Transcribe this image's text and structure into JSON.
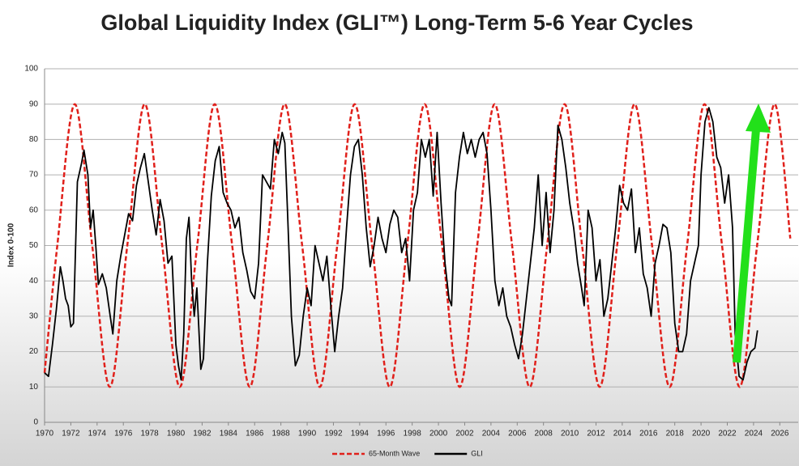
{
  "chart_data": {
    "type": "line",
    "title": "Global Liquidity Index (GLI™) Long-Term 5-6 Year Cycles",
    "y_label": "Index 0-100",
    "xlim": [
      1970,
      2027.4
    ],
    "ylim": [
      0,
      100
    ],
    "xticks": [
      1970,
      1972,
      1974,
      1976,
      1978,
      1980,
      1982,
      1984,
      1986,
      1988,
      1990,
      1992,
      1994,
      1996,
      1998,
      2000,
      2002,
      2004,
      2006,
      2008,
      2010,
      2012,
      2014,
      2016,
      2018,
      2020,
      2022,
      2024,
      2026
    ],
    "yticks": [
      0,
      10,
      20,
      30,
      40,
      50,
      60,
      70,
      80,
      90,
      100
    ],
    "grid": true,
    "legend": "bottom",
    "series": [
      {
        "name": "65-Month Wave",
        "color": "#e0201b",
        "dashed": true,
        "smooth": true,
        "x": [
          1970,
          1970.97,
          1972.3,
          1973.63,
          1974.97,
          1976.3,
          1977.63,
          1978.96,
          1980.3,
          1981.63,
          1982.96,
          1984.29,
          1985.63,
          1986.96,
          1988.29,
          1989.62,
          1990.96,
          1992.29,
          1993.62,
          1994.95,
          1996.29,
          1997.62,
          1998.95,
          2000.28,
          2001.62,
          2002.95,
          2004.28,
          2005.61,
          2006.95,
          2008.28,
          2009.61,
          2010.94,
          2012.28,
          2013.61,
          2014.94,
          2016.27,
          2017.61,
          2018.94,
          2020.27,
          2021.6,
          2022.94,
          2024.27,
          2025.6,
          2026.8
        ],
        "values": [
          14,
          50,
          90,
          50,
          10,
          50,
          90,
          50,
          10,
          50,
          90,
          50,
          10,
          50,
          90,
          50,
          10,
          50,
          90,
          50,
          10,
          50,
          90,
          50,
          10,
          50,
          90,
          50,
          10,
          50,
          90,
          50,
          10,
          50,
          90,
          50,
          10,
          50,
          90,
          50,
          10,
          50,
          90,
          52
        ]
      },
      {
        "name": "GLI",
        "color": "#000000",
        "dashed": false,
        "smooth": false,
        "x": [
          1970.0,
          1970.3,
          1970.6,
          1970.9,
          1971.2,
          1971.4,
          1971.6,
          1971.8,
          1972.0,
          1972.2,
          1972.5,
          1972.8,
          1973.0,
          1973.3,
          1973.5,
          1973.7,
          1973.9,
          1974.1,
          1974.4,
          1974.7,
          1975.0,
          1975.2,
          1975.5,
          1975.8,
          1976.1,
          1976.4,
          1976.7,
          1977.0,
          1977.3,
          1977.6,
          1977.9,
          1978.2,
          1978.5,
          1978.8,
          1979.1,
          1979.4,
          1979.7,
          1980.0,
          1980.2,
          1980.4,
          1980.6,
          1980.8,
          1981.0,
          1981.2,
          1981.4,
          1981.6,
          1981.9,
          1982.1,
          1982.4,
          1982.7,
          1983.0,
          1983.3,
          1983.6,
          1983.9,
          1984.2,
          1984.5,
          1984.8,
          1985.1,
          1985.4,
          1985.7,
          1986.0,
          1986.3,
          1986.6,
          1986.9,
          1987.2,
          1987.5,
          1987.8,
          1988.1,
          1988.3,
          1988.5,
          1988.8,
          1989.1,
          1989.4,
          1989.7,
          1990.0,
          1990.3,
          1990.6,
          1990.9,
          1991.2,
          1991.5,
          1991.8,
          1992.1,
          1992.4,
          1992.7,
          1993.0,
          1993.3,
          1993.6,
          1993.9,
          1994.2,
          1994.5,
          1994.8,
          1995.1,
          1995.4,
          1995.7,
          1996.0,
          1996.3,
          1996.6,
          1996.9,
          1997.2,
          1997.5,
          1997.8,
          1998.1,
          1998.4,
          1998.7,
          1999.0,
          1999.3,
          1999.6,
          1999.9,
          2000.2,
          2000.5,
          2000.8,
          2001.0,
          2001.3,
          2001.6,
          2001.9,
          2002.2,
          2002.5,
          2002.8,
          2003.1,
          2003.4,
          2003.7,
          2004.0,
          2004.3,
          2004.6,
          2004.9,
          2005.2,
          2005.5,
          2005.8,
          2006.1,
          2006.4,
          2006.7,
          2007.0,
          2007.3,
          2007.6,
          2007.9,
          2008.2,
          2008.5,
          2008.8,
          2009.1,
          2009.4,
          2009.7,
          2010.0,
          2010.3,
          2010.6,
          2010.9,
          2011.1,
          2011.4,
          2011.7,
          2012.0,
          2012.3,
          2012.6,
          2012.9,
          2013.2,
          2013.5,
          2013.8,
          2014.1,
          2014.4,
          2014.7,
          2015.0,
          2015.3,
          2015.6,
          2015.9,
          2016.2,
          2016.5,
          2016.8,
          2017.1,
          2017.4,
          2017.7,
          2018.0,
          2018.3,
          2018.6,
          2018.9,
          2019.2,
          2019.5,
          2019.8,
          2020.0,
          2020.3,
          2020.6,
          2020.9,
          2021.2,
          2021.5,
          2021.8,
          2022.1,
          2022.4,
          2022.6,
          2022.9,
          2023.2,
          2023.5,
          2023.8,
          2024.1,
          2024.3
        ],
        "values": [
          14,
          13,
          22,
          32,
          44,
          40,
          35,
          33,
          27,
          28,
          68,
          73,
          77,
          70,
          55,
          60,
          50,
          39,
          42,
          38,
          30,
          25,
          40,
          47,
          53,
          59,
          57,
          67,
          72,
          76,
          68,
          60,
          53,
          63,
          57,
          45,
          47,
          22,
          16,
          12,
          25,
          52,
          58,
          40,
          30,
          38,
          15,
          18,
          45,
          64,
          74,
          78,
          65,
          62,
          60,
          55,
          58,
          48,
          43,
          37,
          35,
          45,
          70,
          68,
          66,
          80,
          76,
          82,
          79,
          60,
          30,
          16,
          19,
          30,
          38,
          33,
          50,
          45,
          40,
          47,
          33,
          20,
          30,
          38,
          55,
          70,
          78,
          80,
          70,
          55,
          44,
          50,
          58,
          52,
          48,
          56,
          60,
          58,
          48,
          52,
          40,
          60,
          65,
          80,
          75,
          80,
          64,
          82,
          62,
          45,
          35,
          33,
          65,
          75,
          82,
          76,
          80,
          75,
          80,
          82,
          76,
          60,
          40,
          33,
          38,
          30,
          27,
          22,
          18,
          25,
          35,
          45,
          55,
          70,
          50,
          65,
          48,
          60,
          84,
          80,
          72,
          62,
          55,
          45,
          38,
          33,
          60,
          55,
          40,
          46,
          30,
          35,
          45,
          55,
          67,
          62,
          60,
          66,
          48,
          55,
          42,
          38,
          30,
          45,
          50,
          56,
          55,
          48,
          28,
          20,
          20,
          25,
          40,
          45,
          50,
          70,
          85,
          89,
          85,
          75,
          72,
          62,
          70,
          55,
          25,
          13,
          12,
          17,
          20,
          21,
          26
        ]
      }
    ]
  }
}
